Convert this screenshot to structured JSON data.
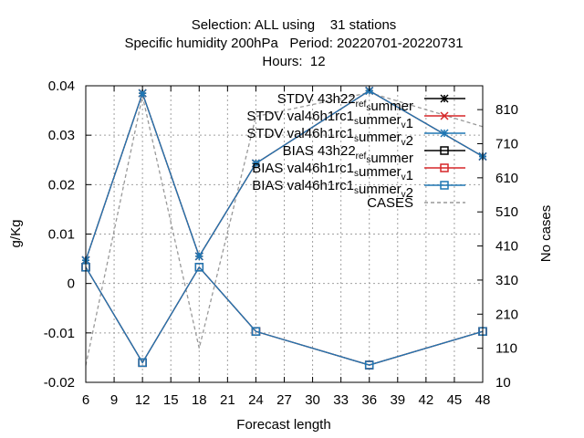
{
  "chart_data": {
    "type": "line",
    "title_lines": [
      "Selection: ALL using    31 stations",
      "Specific humidity 200hPa   Period: 20220701-20220731",
      "Hours:  12"
    ],
    "xlabel": "Forecast length",
    "ylabel": "g/Kg",
    "y2label": "No cases",
    "x_ticks": [
      6,
      9,
      12,
      15,
      18,
      21,
      24,
      27,
      30,
      33,
      36,
      39,
      42,
      45,
      48
    ],
    "xlim": [
      6,
      48
    ],
    "y_ticks": [
      0.04,
      0.03,
      0.02,
      0.01,
      0,
      -0.01,
      -0.02
    ],
    "y_tick_labels": [
      "0.04",
      "0.03",
      "0.02",
      "0.01",
      "0",
      "-0.01",
      "-0.02"
    ],
    "ylim": [
      -0.02,
      0.04
    ],
    "y2_ticks": [
      810,
      710,
      610,
      510,
      410,
      310,
      210,
      110,
      10
    ],
    "y2lim": [
      10,
      880
    ],
    "grid": true,
    "legend_position": "top-right",
    "x": [
      6,
      12,
      18,
      24,
      36,
      48
    ],
    "series": [
      {
        "name": "STDV 43h22_ref_summer",
        "label_parts": [
          [
            "STDV 43h22",
            ""
          ],
          [
            "ref",
            "sub"
          ],
          [
            "",
            ""
          ],
          [
            "s",
            "sub"
          ],
          [
            "ummer",
            ""
          ]
        ],
        "axis": "y",
        "color": "#000000",
        "marker": "star",
        "dash": false,
        "values": [
          0.0047,
          0.0385,
          0.0055,
          0.0243,
          0.039,
          0.0257
        ]
      },
      {
        "name": "STDV val46h1rc1_summer_v1",
        "label_parts": [
          [
            "STDV val46h1rc1",
            ""
          ],
          [
            "s",
            "sub"
          ],
          [
            "ummer",
            ""
          ],
          [
            "v",
            "sub"
          ],
          [
            "1",
            ""
          ]
        ],
        "axis": "y",
        "color": "#d62728",
        "marker": "x",
        "dash": false,
        "values": [
          0.0047,
          0.0385,
          0.0055,
          0.0243,
          0.039,
          0.0257
        ]
      },
      {
        "name": "STDV val46h1rc1_summer_v2",
        "label_parts": [
          [
            "STDV val46h1rc1",
            ""
          ],
          [
            "s",
            "sub"
          ],
          [
            "ummer",
            ""
          ],
          [
            "v",
            "sub"
          ],
          [
            "2",
            ""
          ]
        ],
        "axis": "y",
        "color": "#1f77b4",
        "marker": "star",
        "dash": false,
        "values": [
          0.0047,
          0.0385,
          0.0055,
          0.0243,
          0.039,
          0.0257
        ]
      },
      {
        "name": "BIAS 43h22_ref_summer",
        "label_parts": [
          [
            "BIAS 43h22",
            ""
          ],
          [
            "ref",
            "sub"
          ],
          [
            "",
            ""
          ],
          [
            "s",
            "sub"
          ],
          [
            "ummer",
            ""
          ]
        ],
        "axis": "y",
        "color": "#000000",
        "marker": "square",
        "dash": false,
        "values": [
          0.0033,
          -0.016,
          0.0033,
          -0.0097,
          -0.0165,
          -0.0097
        ]
      },
      {
        "name": "BIAS val46h1rc1_summer_v1",
        "label_parts": [
          [
            "BIAS val46h1rc1",
            ""
          ],
          [
            "s",
            "sub"
          ],
          [
            "ummer",
            ""
          ],
          [
            "v",
            "sub"
          ],
          [
            "1",
            ""
          ]
        ],
        "axis": "y",
        "color": "#d62728",
        "marker": "square",
        "dash": false,
        "values": [
          0.0033,
          -0.016,
          0.0033,
          -0.0097,
          -0.0165,
          -0.0097
        ]
      },
      {
        "name": "BIAS val46h1rc1_summer_v2",
        "label_parts": [
          [
            "BIAS val46h1rc1",
            ""
          ],
          [
            "s",
            "sub"
          ],
          [
            "ummer",
            ""
          ],
          [
            "v",
            "sub"
          ],
          [
            "2",
            ""
          ]
        ],
        "axis": "y",
        "color": "#1f77b4",
        "marker": "square",
        "dash": false,
        "values": [
          0.0033,
          -0.016,
          0.0033,
          -0.0097,
          -0.0165,
          -0.0097
        ]
      },
      {
        "name": "CASES",
        "label_parts": [
          [
            "CASES",
            ""
          ]
        ],
        "axis": "y2",
        "color": "#999999",
        "marker": "none",
        "dash": true,
        "values": [
          60,
          850,
          110,
          790,
          860,
          760
        ]
      }
    ]
  }
}
